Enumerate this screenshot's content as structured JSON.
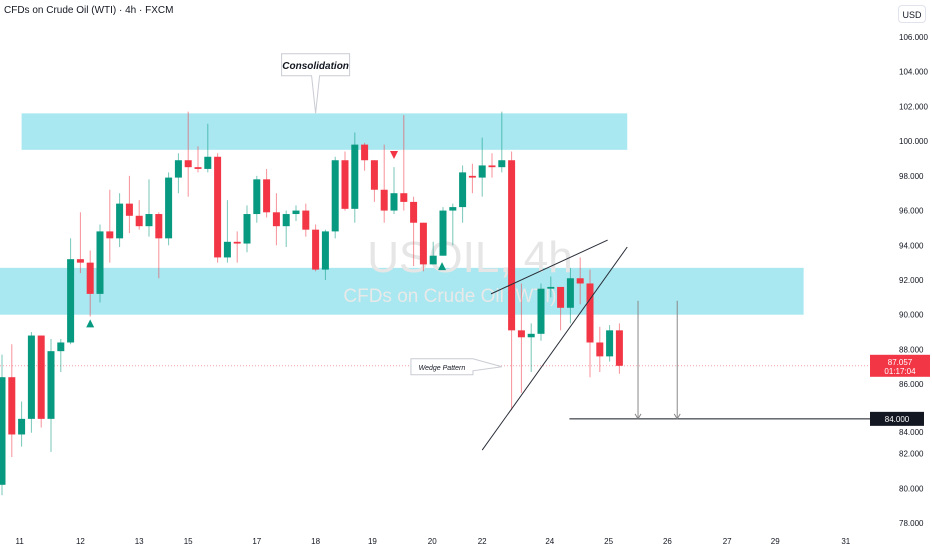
{
  "header": {
    "title": "CFDs on Crude Oil (WTI) · 4h · FXCM",
    "currency": "USD"
  },
  "watermark": {
    "symbol": "USOIL, 4h",
    "description": "CFDs on Crude Oil (WTI)"
  },
  "colors": {
    "up": "#089981",
    "down": "#f23645",
    "zone": "#a9e8f0",
    "line": "#131722",
    "price_line": "#f23645"
  },
  "chart_data": {
    "type": "candlestick",
    "title": "CFDs on Crude Oil (WTI) · 4h · FXCM",
    "ylim": [
      77,
      107
    ],
    "y_ticks": [
      "106.000",
      "104.000",
      "102.000",
      "100.000",
      "98.000",
      "96.000",
      "94.000",
      "92.000",
      "90.000",
      "88.000",
      "86.000",
      "84.000",
      "82.000",
      "80.000",
      "78.000"
    ],
    "x_ticks": [
      {
        "label": "11",
        "bar": 1.8
      },
      {
        "label": "12",
        "bar": 8
      },
      {
        "label": "13",
        "bar": 14
      },
      {
        "label": "15",
        "bar": 19
      },
      {
        "label": "17",
        "bar": 26
      },
      {
        "label": "18",
        "bar": 32
      },
      {
        "label": "19",
        "bar": 37.8
      },
      {
        "label": "20",
        "bar": 43.9
      },
      {
        "label": "22",
        "bar": 49
      },
      {
        "label": "24",
        "bar": 55.9
      },
      {
        "label": "25",
        "bar": 61.9
      },
      {
        "label": "26",
        "bar": 67.9
      },
      {
        "label": "27",
        "bar": 74
      },
      {
        "label": "29",
        "bar": 78.9
      },
      {
        "label": "31",
        "bar": 86.1
      }
    ],
    "ohlc": [
      [
        80.2,
        87.7,
        79.6,
        86.4
      ],
      [
        86.4,
        88.3,
        81.8,
        83.1
      ],
      [
        83.1,
        85.0,
        82.4,
        84.0
      ],
      [
        84.0,
        89.0,
        83.2,
        88.8
      ],
      [
        88.8,
        88.8,
        83.5,
        84.0
      ],
      [
        84.0,
        88.6,
        82.1,
        87.9
      ],
      [
        87.9,
        88.6,
        86.7,
        88.4
      ],
      [
        88.4,
        94.4,
        88.3,
        93.2
      ],
      [
        93.2,
        95.9,
        92.4,
        93.0
      ],
      [
        93.0,
        93.7,
        89.9,
        91.2
      ],
      [
        91.2,
        95.2,
        90.7,
        94.8
      ],
      [
        94.8,
        97.2,
        93.0,
        94.4
      ],
      [
        94.4,
        97.0,
        93.9,
        96.4
      ],
      [
        96.4,
        98.0,
        94.7,
        95.7
      ],
      [
        95.7,
        96.6,
        94.9,
        95.1
      ],
      [
        95.1,
        97.8,
        94.5,
        95.8
      ],
      [
        95.8,
        95.9,
        92.1,
        94.4
      ],
      [
        94.4,
        98.2,
        94.0,
        97.9
      ],
      [
        97.9,
        99.3,
        97.0,
        98.9
      ],
      [
        98.9,
        101.7,
        96.8,
        98.5
      ],
      [
        98.5,
        99.7,
        98.2,
        98.4
      ],
      [
        98.4,
        101.0,
        98.2,
        99.1
      ],
      [
        99.1,
        99.3,
        93.0,
        93.3
      ],
      [
        93.3,
        96.6,
        93.0,
        94.2
      ],
      [
        94.2,
        94.8,
        93.0,
        94.1
      ],
      [
        94.1,
        96.3,
        93.6,
        95.8
      ],
      [
        95.8,
        98.0,
        95.3,
        97.8
      ],
      [
        97.8,
        98.4,
        95.6,
        95.9
      ],
      [
        95.9,
        97.0,
        94.0,
        95.1
      ],
      [
        95.1,
        96.0,
        93.9,
        95.8
      ],
      [
        95.8,
        96.3,
        95.4,
        96.0
      ],
      [
        96.0,
        96.4,
        94.5,
        94.9
      ],
      [
        94.9,
        95.2,
        92.5,
        92.6
      ],
      [
        92.6,
        94.9,
        92.0,
        94.8
      ],
      [
        94.8,
        99.1,
        94.4,
        98.9
      ],
      [
        98.9,
        99.4,
        96.0,
        96.1
      ],
      [
        96.1,
        100.5,
        95.3,
        99.8
      ],
      [
        99.8,
        99.9,
        98.3,
        98.9
      ],
      [
        98.9,
        98.9,
        96.5,
        97.2
      ],
      [
        97.2,
        99.8,
        95.3,
        96.0
      ],
      [
        96.0,
        98.5,
        95.8,
        97.0
      ],
      [
        97.0,
        101.5,
        96.0,
        96.5
      ],
      [
        96.5,
        96.8,
        92.8,
        95.3
      ],
      [
        95.3,
        95.3,
        92.5,
        92.9
      ],
      [
        92.9,
        94.2,
        92.9,
        93.4
      ],
      [
        93.4,
        96.2,
        93.4,
        96.0
      ],
      [
        96.0,
        96.4,
        94.0,
        96.2
      ],
      [
        96.2,
        98.6,
        95.3,
        98.2
      ],
      [
        98.0,
        98.7,
        97.0,
        97.9
      ],
      [
        97.9,
        100.2,
        96.8,
        98.6
      ],
      [
        98.6,
        99.3,
        97.9,
        98.5
      ],
      [
        98.5,
        101.7,
        98.2,
        98.9
      ],
      [
        98.9,
        99.4,
        84.5,
        89.1
      ],
      [
        89.1,
        91.8,
        85.5,
        88.7
      ],
      [
        88.7,
        89.5,
        86.7,
        88.9
      ],
      [
        88.9,
        91.8,
        88.5,
        91.5
      ],
      [
        91.5,
        92.2,
        91.0,
        91.6
      ],
      [
        91.6,
        91.6,
        89.1,
        90.4
      ],
      [
        90.4,
        92.7,
        89.5,
        92.1
      ],
      [
        92.1,
        93.3,
        90.6,
        91.8
      ],
      [
        91.8,
        92.6,
        86.4,
        88.4
      ],
      [
        88.4,
        89.3,
        86.7,
        87.6
      ],
      [
        87.6,
        89.4,
        87.3,
        89.1
      ],
      [
        89.1,
        89.5,
        86.6,
        87.057
      ]
    ],
    "zones": [
      {
        "name": "resistance-zone",
        "from_bar": 2,
        "to_bar": 63.8,
        "low": 99.5,
        "high": 101.6
      },
      {
        "name": "support-zone",
        "from_bar": -1,
        "to_bar": 81.8,
        "low": 90.0,
        "high": 92.7
      }
    ],
    "last_price": {
      "value": 87.057,
      "label": "87.057",
      "countdown": "01:17:04"
    },
    "target": {
      "value": 84.0,
      "label": "84.000",
      "from_bar": 57.9
    },
    "wedge_lines": [
      {
        "from": [
          49,
          82.2
        ],
        "to": [
          63.8,
          93.9
        ]
      },
      {
        "from": [
          49.9,
          91.2
        ],
        "to": [
          61.8,
          94.3
        ]
      }
    ],
    "target_arrows": [
      {
        "bar": 64.9,
        "from": 90.8,
        "to": 84.0
      },
      {
        "bar": 68.9,
        "from": 90.8,
        "to": 84.0
      }
    ],
    "markers": [
      {
        "type": "up",
        "bar": 9,
        "price": 89.5
      },
      {
        "type": "down",
        "bar": 40,
        "price": 99.2
      },
      {
        "type": "up",
        "bar": 44.9,
        "price": 92.8
      }
    ],
    "annotations": [
      {
        "text": "Consolidation",
        "bar": 32,
        "price": 104.4,
        "pointer_price": 101.6
      },
      {
        "text": "Wedge Pattern",
        "bar": 45.3,
        "price": 87.0,
        "pointer_bar": 51,
        "pointer_price": 87.0
      }
    ]
  }
}
